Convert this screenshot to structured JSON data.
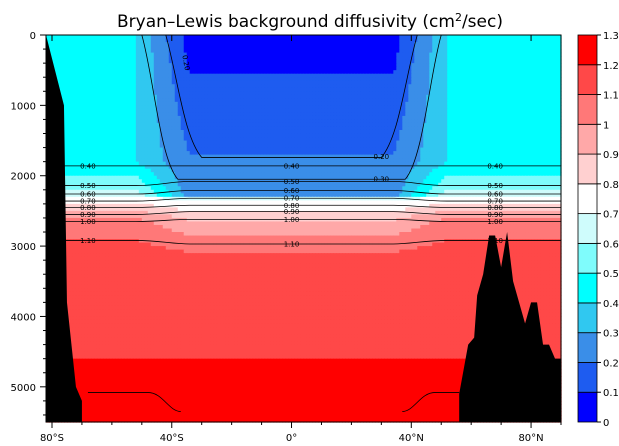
{
  "chart_data": {
    "type": "heatmap",
    "title": "Bryan–Lewis background diffusivity (cm",
    "title_sup": "2",
    "title_end": "/sec)",
    "x_ticks": [
      {
        "value": -80,
        "label": "80°S"
      },
      {
        "value": -40,
        "label": "40°S"
      },
      {
        "value": 0,
        "label": "0°"
      },
      {
        "value": 40,
        "label": "40°N"
      },
      {
        "value": 80,
        "label": "80°N"
      }
    ],
    "x_range": [
      -82,
      90
    ],
    "y_ticks": [
      {
        "value": 0,
        "label": "0"
      },
      {
        "value": 1000,
        "label": "1000"
      },
      {
        "value": 2000,
        "label": "2000"
      },
      {
        "value": 3000,
        "label": "3000"
      },
      {
        "value": 4000,
        "label": "4000"
      },
      {
        "value": 5000,
        "label": "5000"
      }
    ],
    "y_range": [
      0,
      5500
    ],
    "levels": [
      0,
      0.1,
      0.2,
      0.3,
      0.4,
      0.5,
      0.6,
      0.7,
      0.8,
      0.9,
      1.0,
      1.1,
      1.2,
      1.3
    ],
    "colorbar_labels": [
      "1.3",
      "1.2",
      "1.1",
      "1",
      "0.9",
      "0.8",
      "0.7",
      "0.6",
      "0.5",
      "0.4",
      "0.3",
      "0.2",
      "0.1",
      "0"
    ],
    "colors": [
      "#0000ff",
      "#1e5cf0",
      "#3a8ee8",
      "#30c8f0",
      "#00ffff",
      "#7ffcfc",
      "#cffcfc",
      "#ffffff",
      "#ffd0d0",
      "#ffa8a8",
      "#ff7878",
      "#ff4848",
      "#ff0000"
    ],
    "land_color": "#000000",
    "profile": {
      "depth": [
        1800,
        2000,
        2200,
        2300,
        2400,
        2500,
        2600,
        2700,
        2800,
        2900,
        3000
      ],
      "kappa": [
        0.4,
        0.5,
        0.6,
        0.7,
        0.8,
        0.9,
        1.0,
        1.05,
        1.08,
        1.1,
        1.12
      ]
    },
    "contours": [
      {
        "label": "0.20"
      },
      {
        "label": "0.30"
      },
      {
        "label": "0.40"
      },
      {
        "label": "0.50"
      },
      {
        "label": "0.60"
      },
      {
        "label": "0.70"
      },
      {
        "label": "0.80"
      },
      {
        "label": "0.90"
      },
      {
        "label": "1.00"
      },
      {
        "label": "1.10"
      }
    ]
  }
}
